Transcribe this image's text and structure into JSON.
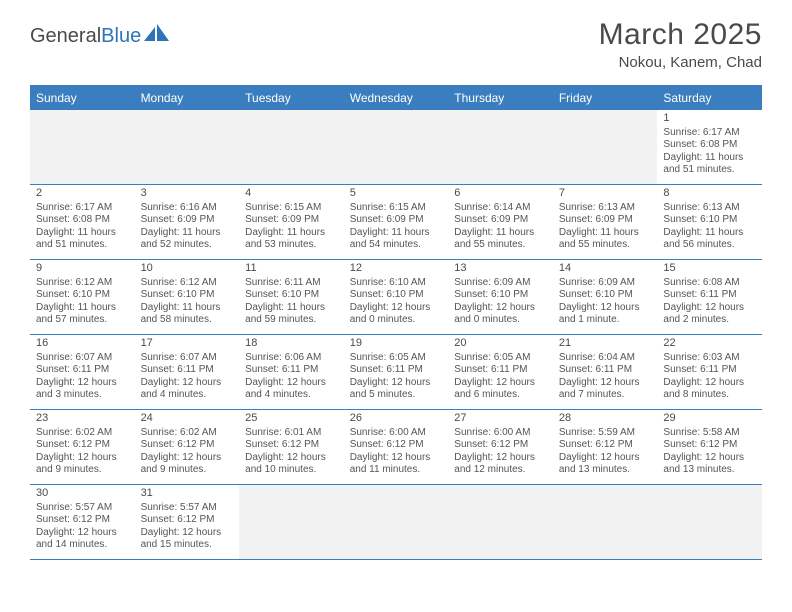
{
  "brand": {
    "part1": "General",
    "part2": "Blue"
  },
  "title": "March 2025",
  "location": "Nokou, Kanem, Chad",
  "colors": {
    "header_bg": "#3a7ebf",
    "header_text": "#ffffff",
    "border": "#3a7ebf",
    "empty_bg": "#f2f2f2",
    "text": "#555555",
    "title_text": "#4a4a4a"
  },
  "day_names": [
    "Sunday",
    "Monday",
    "Tuesday",
    "Wednesday",
    "Thursday",
    "Friday",
    "Saturday"
  ],
  "weeks": [
    [
      {
        "empty": true
      },
      {
        "empty": true
      },
      {
        "empty": true
      },
      {
        "empty": true
      },
      {
        "empty": true
      },
      {
        "empty": true
      },
      {
        "day": "1",
        "sunrise": "Sunrise: 6:17 AM",
        "sunset": "Sunset: 6:08 PM",
        "daylight": "Daylight: 11 hours and 51 minutes."
      }
    ],
    [
      {
        "day": "2",
        "sunrise": "Sunrise: 6:17 AM",
        "sunset": "Sunset: 6:08 PM",
        "daylight": "Daylight: 11 hours and 51 minutes."
      },
      {
        "day": "3",
        "sunrise": "Sunrise: 6:16 AM",
        "sunset": "Sunset: 6:09 PM",
        "daylight": "Daylight: 11 hours and 52 minutes."
      },
      {
        "day": "4",
        "sunrise": "Sunrise: 6:15 AM",
        "sunset": "Sunset: 6:09 PM",
        "daylight": "Daylight: 11 hours and 53 minutes."
      },
      {
        "day": "5",
        "sunrise": "Sunrise: 6:15 AM",
        "sunset": "Sunset: 6:09 PM",
        "daylight": "Daylight: 11 hours and 54 minutes."
      },
      {
        "day": "6",
        "sunrise": "Sunrise: 6:14 AM",
        "sunset": "Sunset: 6:09 PM",
        "daylight": "Daylight: 11 hours and 55 minutes."
      },
      {
        "day": "7",
        "sunrise": "Sunrise: 6:13 AM",
        "sunset": "Sunset: 6:09 PM",
        "daylight": "Daylight: 11 hours and 55 minutes."
      },
      {
        "day": "8",
        "sunrise": "Sunrise: 6:13 AM",
        "sunset": "Sunset: 6:10 PM",
        "daylight": "Daylight: 11 hours and 56 minutes."
      }
    ],
    [
      {
        "day": "9",
        "sunrise": "Sunrise: 6:12 AM",
        "sunset": "Sunset: 6:10 PM",
        "daylight": "Daylight: 11 hours and 57 minutes."
      },
      {
        "day": "10",
        "sunrise": "Sunrise: 6:12 AM",
        "sunset": "Sunset: 6:10 PM",
        "daylight": "Daylight: 11 hours and 58 minutes."
      },
      {
        "day": "11",
        "sunrise": "Sunrise: 6:11 AM",
        "sunset": "Sunset: 6:10 PM",
        "daylight": "Daylight: 11 hours and 59 minutes."
      },
      {
        "day": "12",
        "sunrise": "Sunrise: 6:10 AM",
        "sunset": "Sunset: 6:10 PM",
        "daylight": "Daylight: 12 hours and 0 minutes."
      },
      {
        "day": "13",
        "sunrise": "Sunrise: 6:09 AM",
        "sunset": "Sunset: 6:10 PM",
        "daylight": "Daylight: 12 hours and 0 minutes."
      },
      {
        "day": "14",
        "sunrise": "Sunrise: 6:09 AM",
        "sunset": "Sunset: 6:10 PM",
        "daylight": "Daylight: 12 hours and 1 minute."
      },
      {
        "day": "15",
        "sunrise": "Sunrise: 6:08 AM",
        "sunset": "Sunset: 6:11 PM",
        "daylight": "Daylight: 12 hours and 2 minutes."
      }
    ],
    [
      {
        "day": "16",
        "sunrise": "Sunrise: 6:07 AM",
        "sunset": "Sunset: 6:11 PM",
        "daylight": "Daylight: 12 hours and 3 minutes."
      },
      {
        "day": "17",
        "sunrise": "Sunrise: 6:07 AM",
        "sunset": "Sunset: 6:11 PM",
        "daylight": "Daylight: 12 hours and 4 minutes."
      },
      {
        "day": "18",
        "sunrise": "Sunrise: 6:06 AM",
        "sunset": "Sunset: 6:11 PM",
        "daylight": "Daylight: 12 hours and 4 minutes."
      },
      {
        "day": "19",
        "sunrise": "Sunrise: 6:05 AM",
        "sunset": "Sunset: 6:11 PM",
        "daylight": "Daylight: 12 hours and 5 minutes."
      },
      {
        "day": "20",
        "sunrise": "Sunrise: 6:05 AM",
        "sunset": "Sunset: 6:11 PM",
        "daylight": "Daylight: 12 hours and 6 minutes."
      },
      {
        "day": "21",
        "sunrise": "Sunrise: 6:04 AM",
        "sunset": "Sunset: 6:11 PM",
        "daylight": "Daylight: 12 hours and 7 minutes."
      },
      {
        "day": "22",
        "sunrise": "Sunrise: 6:03 AM",
        "sunset": "Sunset: 6:11 PM",
        "daylight": "Daylight: 12 hours and 8 minutes."
      }
    ],
    [
      {
        "day": "23",
        "sunrise": "Sunrise: 6:02 AM",
        "sunset": "Sunset: 6:12 PM",
        "daylight": "Daylight: 12 hours and 9 minutes."
      },
      {
        "day": "24",
        "sunrise": "Sunrise: 6:02 AM",
        "sunset": "Sunset: 6:12 PM",
        "daylight": "Daylight: 12 hours and 9 minutes."
      },
      {
        "day": "25",
        "sunrise": "Sunrise: 6:01 AM",
        "sunset": "Sunset: 6:12 PM",
        "daylight": "Daylight: 12 hours and 10 minutes."
      },
      {
        "day": "26",
        "sunrise": "Sunrise: 6:00 AM",
        "sunset": "Sunset: 6:12 PM",
        "daylight": "Daylight: 12 hours and 11 minutes."
      },
      {
        "day": "27",
        "sunrise": "Sunrise: 6:00 AM",
        "sunset": "Sunset: 6:12 PM",
        "daylight": "Daylight: 12 hours and 12 minutes."
      },
      {
        "day": "28",
        "sunrise": "Sunrise: 5:59 AM",
        "sunset": "Sunset: 6:12 PM",
        "daylight": "Daylight: 12 hours and 13 minutes."
      },
      {
        "day": "29",
        "sunrise": "Sunrise: 5:58 AM",
        "sunset": "Sunset: 6:12 PM",
        "daylight": "Daylight: 12 hours and 13 minutes."
      }
    ],
    [
      {
        "day": "30",
        "sunrise": "Sunrise: 5:57 AM",
        "sunset": "Sunset: 6:12 PM",
        "daylight": "Daylight: 12 hours and 14 minutes."
      },
      {
        "day": "31",
        "sunrise": "Sunrise: 5:57 AM",
        "sunset": "Sunset: 6:12 PM",
        "daylight": "Daylight: 12 hours and 15 minutes."
      },
      {
        "empty": true
      },
      {
        "empty": true
      },
      {
        "empty": true
      },
      {
        "empty": true
      },
      {
        "empty": true
      }
    ]
  ]
}
